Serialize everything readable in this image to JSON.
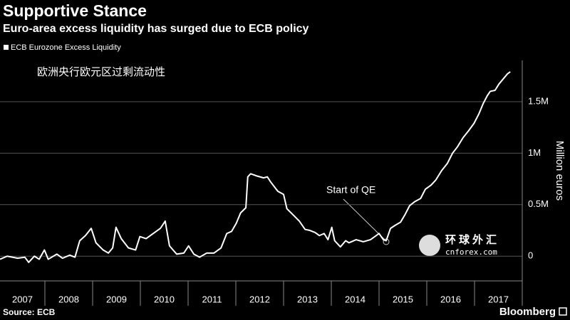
{
  "chart_data": {
    "type": "line",
    "title": "Supportive Stance",
    "subtitle": "Euro-area excess liquidity has surged due to ECB policy",
    "annotation_cn": "欧洲央行欧元区过剩流动性",
    "annotation": "Start of QE",
    "y_label": "Million euros",
    "source": "Source: ECB",
    "brand": "Bloomberg",
    "watermark": [
      "环球外汇",
      "cnforex.com"
    ],
    "xlim": [
      2007,
      2018
    ],
    "xticks": [
      2007,
      2008,
      2009,
      2010,
      2011,
      2012,
      2013,
      2014,
      2015,
      2016,
      2017
    ],
    "ylim": [
      -0.24,
      1.9
    ],
    "yticks": [
      0,
      {
        "value": 0.5,
        "label": "0.5M"
      },
      {
        "value": 1,
        "label": "1M"
      },
      {
        "value": 1.5,
        "label": "1.5M"
      }
    ],
    "grid": true,
    "x": [
      2007.06,
      2007.21,
      2007.43,
      2007.58,
      2007.66,
      2007.78,
      2007.88,
      2007.99,
      2008.07,
      2008.25,
      2008.37,
      2008.52,
      2008.63,
      2008.73,
      2008.85,
      2008.97,
      2009.07,
      2009.22,
      2009.33,
      2009.42,
      2009.49,
      2009.6,
      2009.75,
      2009.9,
      2009.99,
      2010.12,
      2010.27,
      2010.42,
      2010.52,
      2010.61,
      2010.76,
      2010.91,
      2011.01,
      2011.12,
      2011.24,
      2011.39,
      2011.54,
      2011.69,
      2011.81,
      2011.91,
      2012.01,
      2012.1,
      2012.21,
      2012.25,
      2012.31,
      2012.43,
      2012.58,
      2012.66,
      2012.73,
      2012.88,
      2013.0,
      2013.07,
      2013.18,
      2013.33,
      2013.45,
      2013.55,
      2013.66,
      2013.75,
      2013.85,
      2013.93,
      2014.01,
      2014.07,
      2014.19,
      2014.3,
      2014.37,
      2014.52,
      2014.67,
      2014.82,
      2014.94,
      2015.0,
      2015.09,
      2015.15,
      2015.24,
      2015.34,
      2015.45,
      2015.54,
      2015.64,
      2015.75,
      2015.87,
      2015.97,
      2016.09,
      2016.19,
      2016.31,
      2016.43,
      2016.54,
      2016.64,
      2016.76,
      2016.88,
      2016.99,
      2017.09,
      2017.18,
      2017.27,
      2017.33,
      2017.43,
      2017.51,
      2017.6,
      2017.69,
      2017.75
    ],
    "series": [
      {
        "name": "ECB Eurozone Excess Liquidity",
        "color": "#ffffff",
        "values": [
          -0.03,
          0,
          -0.02,
          -0.01,
          -0.06,
          0,
          -0.03,
          0.06,
          -0.03,
          0.02,
          -0.02,
          0.01,
          -0.01,
          0.15,
          0.2,
          0.27,
          0.13,
          0.06,
          0.03,
          0.08,
          0.28,
          0.17,
          0.08,
          0.06,
          0.19,
          0.17,
          0.22,
          0.27,
          0.34,
          0.1,
          0.02,
          0.03,
          0.1,
          0.02,
          -0.01,
          0.03,
          0.03,
          0.08,
          0.22,
          0.24,
          0.32,
          0.42,
          0.47,
          0.77,
          0.8,
          0.78,
          0.76,
          0.77,
          0.72,
          0.63,
          0.6,
          0.46,
          0.41,
          0.34,
          0.26,
          0.25,
          0.23,
          0.2,
          0.22,
          0.16,
          0.28,
          0.15,
          0.09,
          0.15,
          0.13,
          0.16,
          0.14,
          0.16,
          0.2,
          0.22,
          0.16,
          0.15,
          0.27,
          0.3,
          0.33,
          0.4,
          0.49,
          0.53,
          0.56,
          0.65,
          0.69,
          0.74,
          0.83,
          0.9,
          1.0,
          1.06,
          1.15,
          1.22,
          1.29,
          1.38,
          1.48,
          1.56,
          1.6,
          1.61,
          1.67,
          1.72,
          1.77,
          1.79
        ]
      }
    ]
  }
}
